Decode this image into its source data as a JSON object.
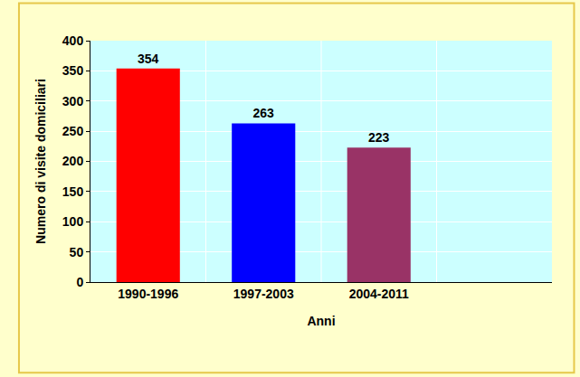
{
  "chart_data": {
    "type": "bar",
    "x_label": "Anni",
    "y_label": "Numero di visite domiciliari",
    "categories": [
      "1990-1996",
      "1997-2003",
      "2004-2011",
      null
    ],
    "values": [
      354,
      263,
      223,
      null
    ],
    "colors": [
      "#ff0000",
      "#0000ff",
      "#993366"
    ],
    "ylim": [
      0,
      400
    ],
    "yticks": [
      0,
      50,
      100,
      150,
      200,
      250,
      300,
      350,
      400
    ],
    "grid": true,
    "data_labels": true
  }
}
